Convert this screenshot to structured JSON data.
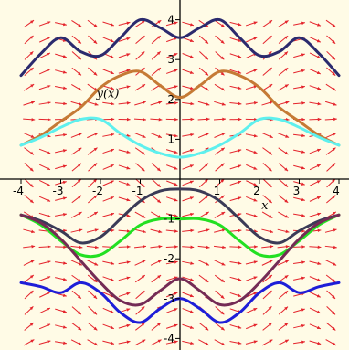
{
  "colors": {
    "background": "#fffbe6",
    "arrow": "#e4232b",
    "axis": "#000000",
    "curves": [
      "#2b2a6e",
      "#c57a35",
      "#5ef0ee",
      "#3b3b57",
      "#22e022",
      "#742c55",
      "#1e1ed8"
    ]
  },
  "chart_data": {
    "type": "line",
    "title": "",
    "xlabel": "x",
    "ylabel": "y(x)",
    "xlim": [
      -4,
      4
    ],
    "ylim": [
      -4.2,
      4.2
    ],
    "grid": false,
    "legend": "none",
    "x_ticks": [
      "-4",
      "-3",
      "-2",
      "-1",
      "1",
      "2",
      "3",
      "4"
    ],
    "y_ticks": [
      "4",
      "3",
      "2",
      "1",
      "-1",
      "-2",
      "-3",
      "-4"
    ],
    "direction_field": {
      "slope_function": "sin(2*x)*cos(y) (approximate)",
      "x_spacing": 0.4,
      "y_spacing": 0.4
    },
    "series": [
      {
        "x": [
          -4,
          -3.5,
          -3.0,
          -2.5,
          -2.0,
          -1.5,
          -1.0,
          -0.5,
          0.0,
          0.5,
          1.0,
          1.5,
          2.0,
          2.5,
          3.0,
          3.5,
          4.0
        ],
        "y": [
          2.6,
          3.15,
          3.55,
          3.2,
          3.1,
          3.55,
          4.0,
          3.8,
          3.55,
          3.8,
          4.0,
          3.55,
          3.1,
          3.2,
          3.55,
          3.15,
          2.6
        ]
      },
      {
        "x": [
          -4,
          -3.5,
          -3.0,
          -2.5,
          -2.0,
          -1.5,
          -1.0,
          -0.5,
          0.0,
          0.5,
          1.0,
          1.5,
          2.0,
          2.5,
          3.0,
          3.5,
          4.0
        ],
        "y": [
          0.85,
          1.1,
          1.45,
          1.8,
          2.3,
          2.6,
          2.7,
          2.35,
          2.05,
          2.35,
          2.7,
          2.6,
          2.3,
          1.8,
          1.45,
          1.1,
          0.85
        ]
      },
      {
        "x": [
          -4,
          -3.5,
          -3.0,
          -2.5,
          -2.0,
          -1.5,
          -1.0,
          -0.5,
          0.0,
          0.5,
          1.0,
          1.5,
          2.0,
          2.5,
          3.0,
          3.5,
          4.0
        ],
        "y": [
          0.85,
          1.05,
          1.3,
          1.5,
          1.5,
          1.15,
          0.85,
          0.65,
          0.55,
          0.65,
          0.85,
          1.15,
          1.5,
          1.5,
          1.3,
          1.05,
          0.85
        ]
      },
      {
        "x": [
          -4,
          -3.5,
          -3.0,
          -2.5,
          -2.0,
          -1.5,
          -1.0,
          -0.5,
          0.0,
          0.5,
          1.0,
          1.5,
          2.0,
          2.5,
          3.0,
          3.5,
          4.0
        ],
        "y": [
          -0.9,
          -1.05,
          -1.3,
          -1.6,
          -1.45,
          -1.0,
          -0.55,
          -0.3,
          -0.25,
          -0.3,
          -0.55,
          -1.0,
          -1.45,
          -1.6,
          -1.3,
          -1.05,
          -0.9
        ]
      },
      {
        "x": [
          -4,
          -3.5,
          -3.0,
          -2.5,
          -2.0,
          -1.5,
          -1.0,
          -0.5,
          0.0,
          0.5,
          1.0,
          1.5,
          2.0,
          2.5,
          3.0,
          3.5,
          4.0
        ],
        "y": [
          -0.9,
          -1.15,
          -1.55,
          -1.9,
          -1.9,
          -1.55,
          -1.15,
          -1.0,
          -1.0,
          -1.0,
          -1.15,
          -1.55,
          -1.9,
          -1.9,
          -1.55,
          -1.15,
          -0.9
        ]
      },
      {
        "x": [
          -4,
          -3.5,
          -3.0,
          -2.5,
          -2.0,
          -1.5,
          -1.0,
          -0.5,
          0.0,
          0.5,
          1.0,
          1.5,
          2.0,
          2.5,
          3.0,
          3.5,
          4.0
        ],
        "y": [
          -0.9,
          -1.1,
          -1.5,
          -2.05,
          -2.6,
          -3.05,
          -3.15,
          -2.8,
          -2.5,
          -2.8,
          -3.15,
          -3.05,
          -2.6,
          -2.05,
          -1.5,
          -1.1,
          -0.9
        ]
      },
      {
        "x": [
          -4,
          -3.5,
          -3.0,
          -2.5,
          -2.0,
          -1.5,
          -1.0,
          -0.5,
          0.0,
          0.5,
          1.0,
          1.5,
          2.0,
          2.5,
          3.0,
          3.5,
          4.0
        ],
        "y": [
          -2.6,
          -2.7,
          -2.85,
          -2.6,
          -2.85,
          -3.35,
          -3.6,
          -3.25,
          -3.0,
          -3.25,
          -3.6,
          -3.35,
          -2.85,
          -2.6,
          -2.85,
          -2.7,
          -2.6
        ]
      }
    ]
  }
}
